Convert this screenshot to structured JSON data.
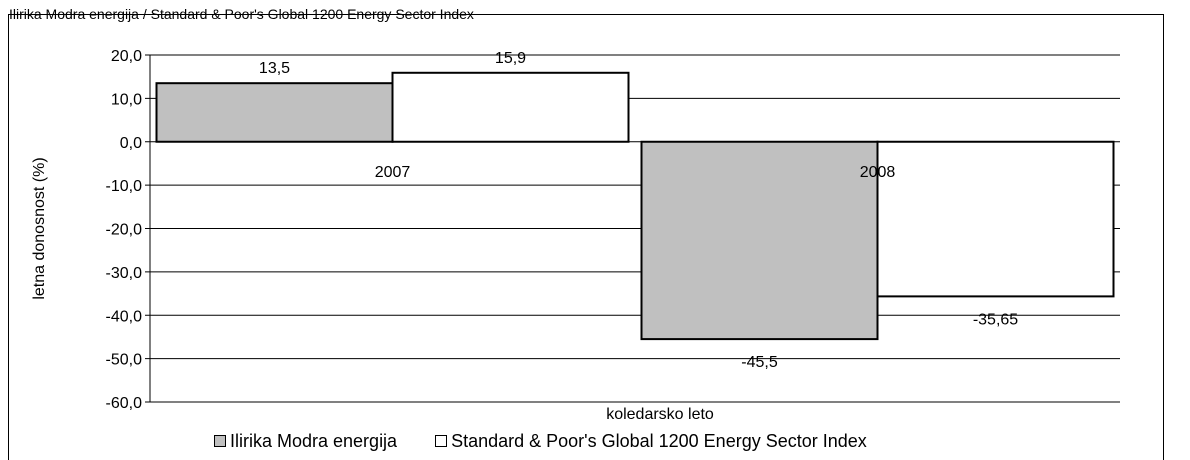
{
  "cut_title": "Ilirika Modra energija / Standard & Poor's Global 1200 Energy Sector Index",
  "chart_data": {
    "type": "bar",
    "categories": [
      "2007",
      "2008"
    ],
    "series": [
      {
        "name": "Ilirika Modra energija",
        "values": [
          13.5,
          -45.5
        ],
        "labels": [
          "13,5",
          "-45,5"
        ],
        "color": "#c0c0c0"
      },
      {
        "name": "Standard & Poor's Global 1200 Energy Sector Index",
        "values": [
          15.9,
          -35.65
        ],
        "labels": [
          "15,9",
          "-35,65"
        ],
        "color": "#ffffff"
      }
    ],
    "ylim": [
      -60,
      20
    ],
    "yticks": [
      20,
      10,
      0,
      -10,
      -20,
      -30,
      -40,
      -50,
      -60
    ],
    "ytick_labels": [
      "20,0",
      "10,0",
      "0,0",
      "-10,0",
      "-20,0",
      "-30,0",
      "-40,0",
      "-50,0",
      "-60,0"
    ],
    "xlabel": "koledarsko leto",
    "ylabel": "letna donosnost (%)",
    "grid": true,
    "legend_position": "bottom"
  }
}
